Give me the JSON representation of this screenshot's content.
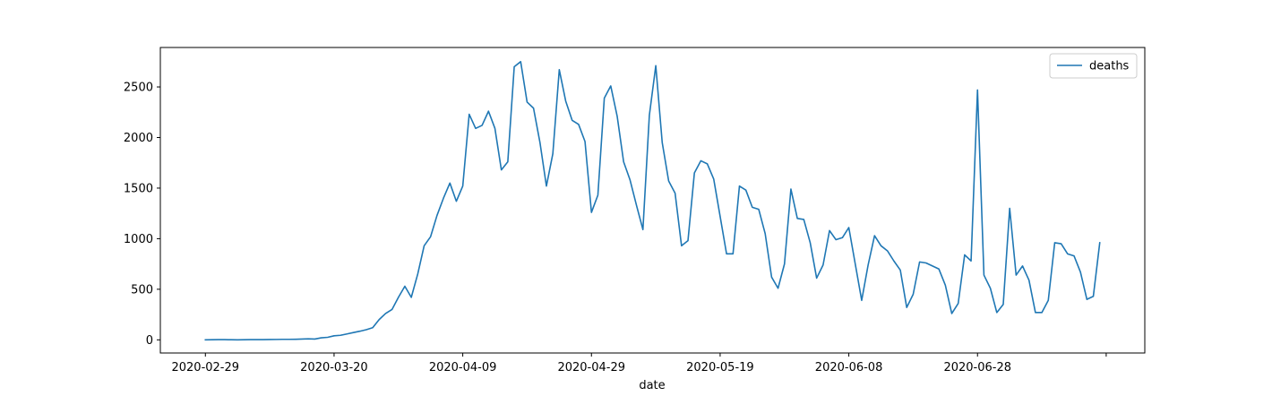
{
  "chart_data": {
    "type": "line",
    "xlabel": "date",
    "ylabel": "",
    "legend": "top-right",
    "grid": false,
    "start_date": "2020-02-29",
    "xlim": [
      "2020-02-22",
      "2020-07-24"
    ],
    "ylim": [
      -130,
      2890
    ],
    "x_ticks": [
      "2020-02-29",
      "2020-03-20",
      "2020-04-09",
      "2020-04-29",
      "2020-05-19",
      "2020-06-08",
      "2020-06-28"
    ],
    "y_ticks": [
      0,
      500,
      1000,
      1500,
      2000,
      2500
    ],
    "y_tick_labels": [
      "0",
      "500",
      "1000",
      "1500",
      "2000",
      "2500"
    ],
    "colors": {
      "line": "#1f77b4",
      "axis": "#000000",
      "legend_border": "#cccccc"
    },
    "series": [
      {
        "name": "deaths",
        "values": [
          0,
          1,
          2,
          2,
          1,
          0,
          1,
          2,
          2,
          2,
          3,
          4,
          5,
          5,
          6,
          8,
          10,
          8,
          20,
          25,
          40,
          45,
          58,
          72,
          85,
          100,
          120,
          200,
          260,
          300,
          420,
          530,
          420,
          650,
          930,
          1020,
          1230,
          1400,
          1550,
          1370,
          1520,
          2230,
          2090,
          2120,
          2260,
          2090,
          1680,
          1760,
          2700,
          2750,
          2350,
          2290,
          1950,
          1520,
          1840,
          2670,
          2360,
          2170,
          2130,
          1960,
          1260,
          1430,
          2390,
          2510,
          2210,
          1760,
          1580,
          1330,
          1090,
          2220,
          2710,
          1950,
          1570,
          1450,
          930,
          980,
          1650,
          1770,
          1740,
          1590,
          1220,
          850,
          850,
          1520,
          1480,
          1310,
          1290,
          1050,
          620,
          510,
          750,
          1490,
          1200,
          1190,
          960,
          610,
          740,
          1080,
          990,
          1010,
          1110,
          750,
          390,
          740,
          1030,
          930,
          880,
          780,
          690,
          320,
          450,
          770,
          760,
          730,
          700,
          540,
          260,
          360,
          840,
          780,
          2470,
          640,
          510,
          270,
          350,
          1300,
          640,
          730,
          590,
          270,
          270,
          390,
          960,
          950,
          850,
          830,
          670,
          400,
          430,
          960
        ]
      }
    ]
  }
}
